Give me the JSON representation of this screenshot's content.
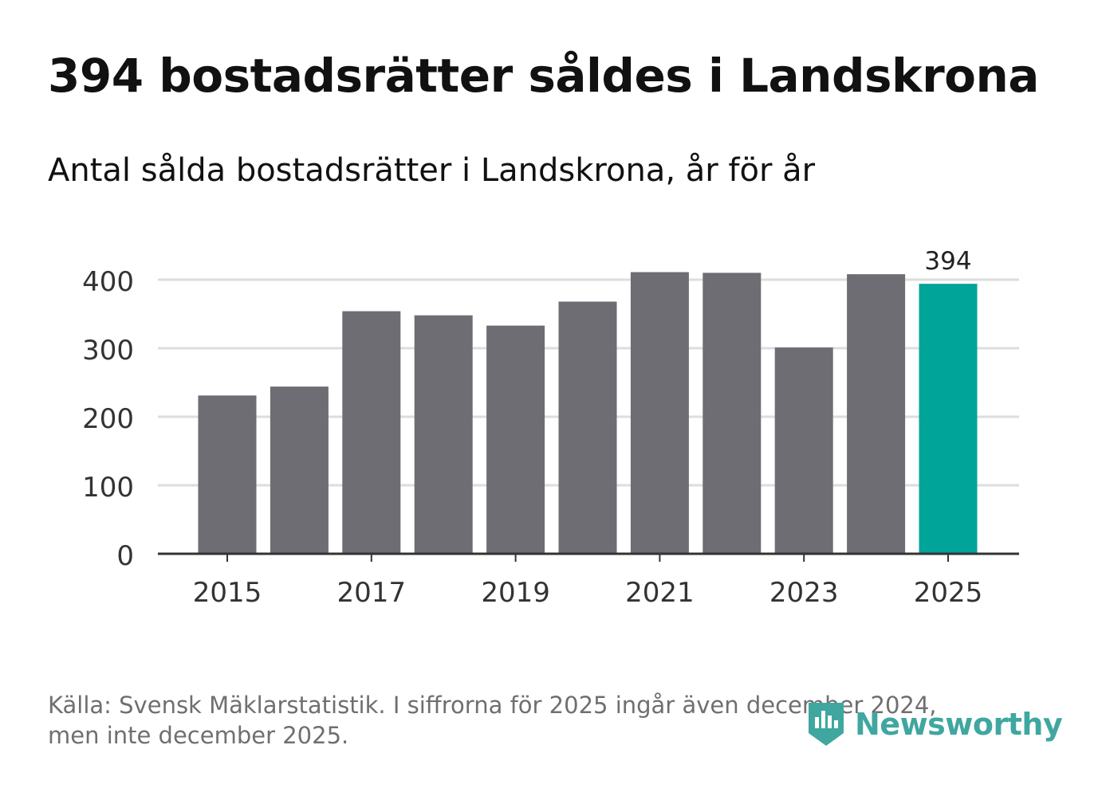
{
  "title": "394 bostadsrätter såldes i Landskrona",
  "subtitle": "Antal sålda bostadsrätter i Landskrona, år för år",
  "source_line1": "Källa: Svensk Mäklarstatistik. I siffrorna för 2025 ingår även december 2024,",
  "source_line2": "men inte december 2025.",
  "brand": "Newsworthy",
  "colors": {
    "bar": "#6e6d73",
    "highlight": "#00a499",
    "grid": "#dddddd",
    "axis": "#333333",
    "brand": "#3fa7a0"
  },
  "chart_data": {
    "type": "bar",
    "title": "Antal sålda bostadsrätter i Landskrona, år för år",
    "categories": [
      "2015",
      "2016",
      "2017",
      "2018",
      "2019",
      "2020",
      "2021",
      "2022",
      "2023",
      "2024",
      "2025"
    ],
    "values": [
      231,
      244,
      354,
      348,
      333,
      368,
      411,
      410,
      301,
      408,
      394
    ],
    "highlight_index": 10,
    "highlight_label": "394",
    "x_tick_labels": [
      "2015",
      "2017",
      "2019",
      "2021",
      "2023",
      "2025"
    ],
    "y_ticks": [
      0,
      100,
      200,
      300,
      400
    ],
    "ylim": [
      0,
      420
    ],
    "xlabel": "",
    "ylabel": "",
    "grid": true
  }
}
